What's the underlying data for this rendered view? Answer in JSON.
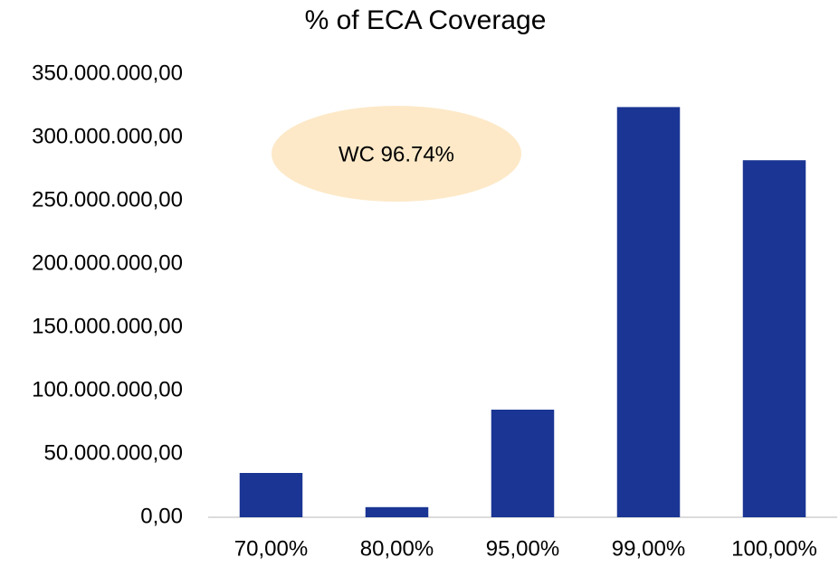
{
  "chart_data": {
    "type": "bar",
    "title": "% of ECA Coverage",
    "annotation": "WC 96.74%",
    "categories": [
      "70,00%",
      "80,00%",
      "95,00%",
      "99,00%",
      "100,00%"
    ],
    "values": [
      35000000,
      8000000,
      85000000,
      324000000,
      282000000
    ],
    "color": "#1a3593",
    "ylim": [
      0,
      350000000
    ],
    "yticks": [
      {
        "value": 0,
        "label": "0,00"
      },
      {
        "value": 50000000,
        "label": "50.000.000,00"
      },
      {
        "value": 100000000,
        "label": "100.000.000,00"
      },
      {
        "value": 150000000,
        "label": "150.000.000,00"
      },
      {
        "value": 200000000,
        "label": "200.000.000,00"
      },
      {
        "value": 250000000,
        "label": "250.000.000,00"
      },
      {
        "value": 300000000,
        "label": "300.000.000,00"
      },
      {
        "value": 350000000,
        "label": "350.000.000,00"
      }
    ],
    "grid": false
  }
}
